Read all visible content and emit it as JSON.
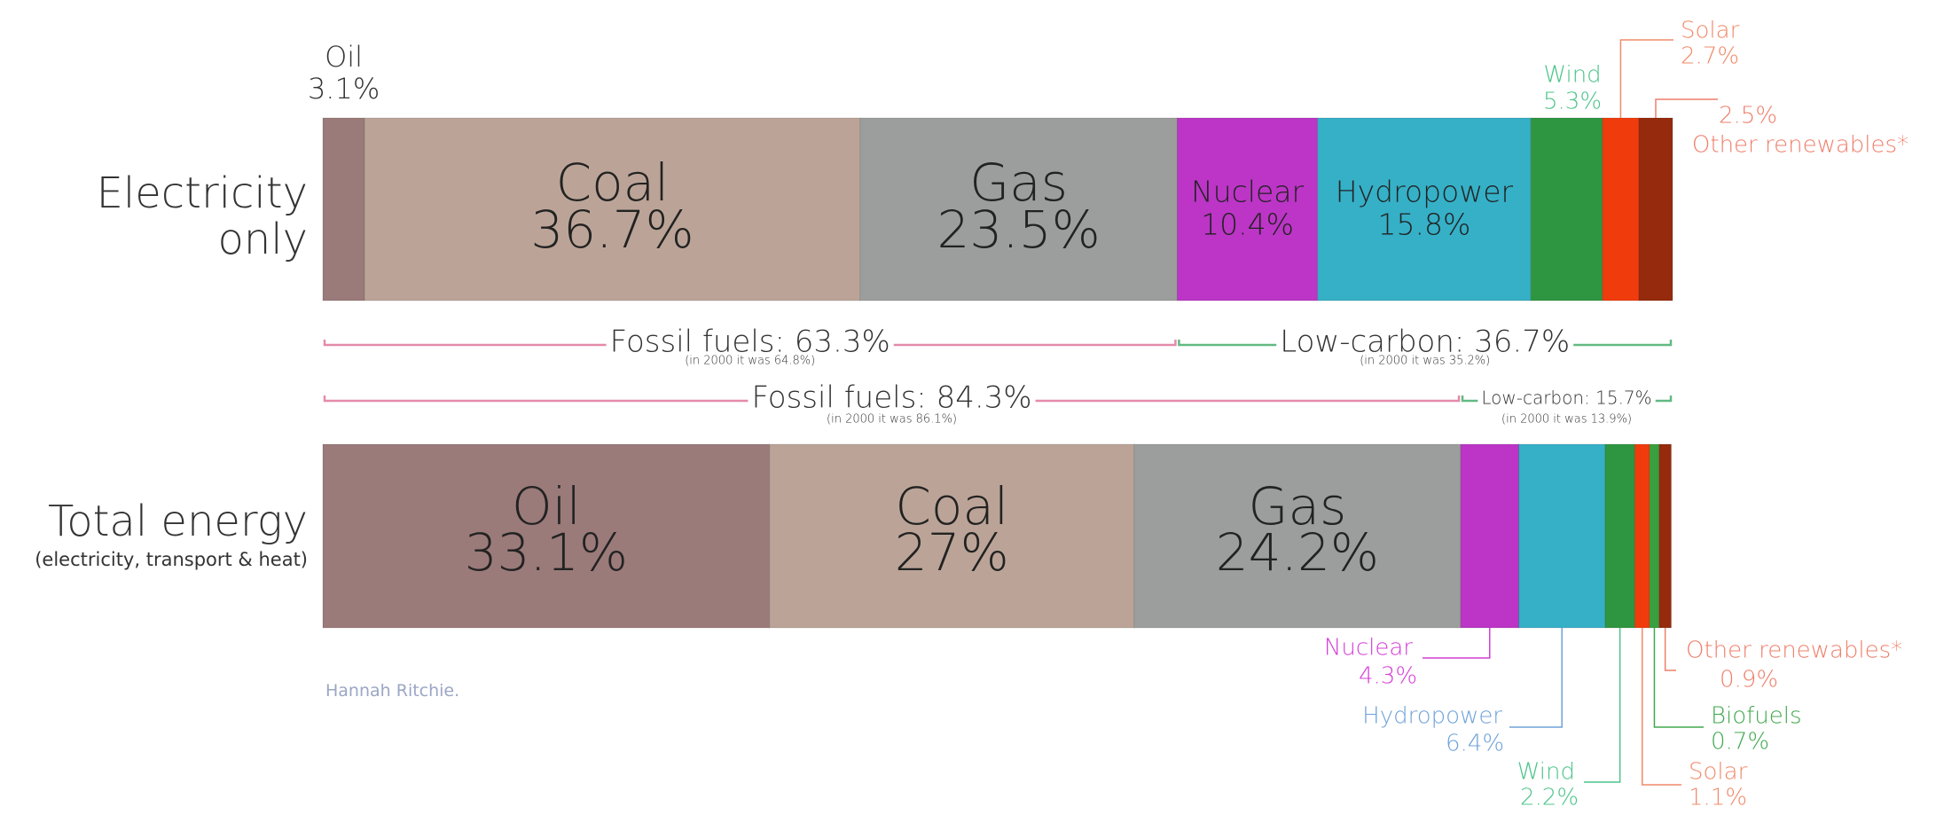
{
  "chart_data": {
    "type": "stacked-bar",
    "categories": [
      "Electricity only",
      "Total energy"
    ],
    "category_notes": [
      null,
      "(electricity, transport & heat)"
    ],
    "xlim": [
      0,
      100
    ],
    "series": [
      {
        "name": "Oil",
        "color": "#9b7a7a",
        "values": [
          3.1,
          33.1
        ],
        "value_labels": [
          "3.1%",
          "33.1%"
        ]
      },
      {
        "name": "Coal",
        "color": "#bba497",
        "values": [
          36.7,
          27
        ],
        "value_labels": [
          "36.7%",
          "27%"
        ]
      },
      {
        "name": "Gas",
        "color": "#9b9e9c",
        "values": [
          23.5,
          24.2
        ],
        "value_labels": [
          "23.5%",
          "24.2%"
        ]
      },
      {
        "name": "Nuclear",
        "color": "#bc35c6",
        "values": [
          10.4,
          4.3
        ],
        "value_labels": [
          "10.4%",
          "4.3%"
        ]
      },
      {
        "name": "Hydropower",
        "color": "#35b0c7",
        "values": [
          15.8,
          6.4
        ],
        "value_labels": [
          "15.8%",
          "6.4%"
        ]
      },
      {
        "name": "Wind",
        "color": "#2e9640",
        "values": [
          5.3,
          2.2
        ],
        "value_labels": [
          "5.3%",
          "2.2%"
        ]
      },
      {
        "name": "Solar",
        "color": "#f03c0c",
        "values": [
          2.7,
          1.1
        ],
        "value_labels": [
          "2.7%",
          "1.1%"
        ]
      },
      {
        "name": "Biofuels",
        "color": "#38a03e",
        "values": [
          null,
          0.7
        ],
        "value_labels": [
          null,
          "0.7%"
        ]
      },
      {
        "name": "Other renewables*",
        "color": "#962a0c",
        "values": [
          2.5,
          0.9
        ],
        "value_labels": [
          "2.5%",
          "0.9%"
        ]
      }
    ],
    "groups": [
      [
        {
          "label": "Fossil fuels: 63.3%",
          "value": 63.3,
          "note": "(in 2000 it was 64.8%)",
          "color": "#e48aab"
        },
        {
          "label": "Low-carbon: 36.7%",
          "value": 36.7,
          "note": "(in 2000 it was 35.2%)",
          "color": "#62b982"
        }
      ],
      [
        {
          "label": "Fossil fuels: 84.3%",
          "value": 84.3,
          "note": "(in 2000 it was 86.1%)",
          "color": "#e48aab"
        },
        {
          "label": "Low-carbon: 15.7%",
          "value": 15.7,
          "note": "(in 2000 it was 13.9%)",
          "color": "#62b982"
        }
      ]
    ],
    "source": "Hannah Ritchie."
  }
}
